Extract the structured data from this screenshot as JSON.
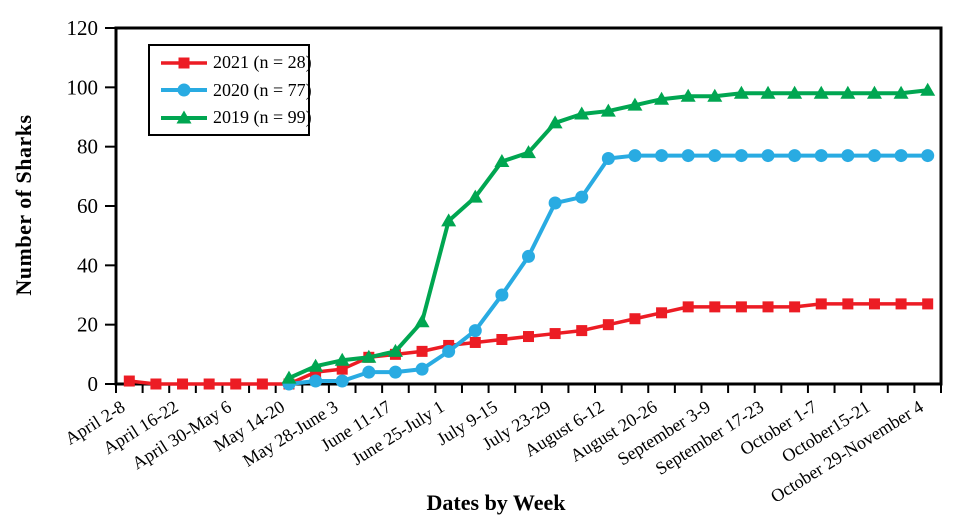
{
  "chart_data": {
    "type": "line",
    "title": "",
    "xlabel": "Dates by Week",
    "ylabel": "Number of Sharks",
    "ylim": [
      0,
      120
    ],
    "yticks": [
      0,
      20,
      40,
      60,
      80,
      100,
      120
    ],
    "grid": false,
    "legend_position": "top-left inside plot area",
    "x_tick_label_rotation_deg": -32,
    "points_per_label": 2,
    "x_labels": [
      "April 2-8",
      "April 16-22",
      "April 30-May 6",
      "May 14-20",
      "May 28-June 3",
      "June 11-17",
      "June 25-July 1",
      "July 9-15",
      "July 23-29",
      "August 6-12",
      "August 20-26",
      "September 3-9",
      "September 17-23",
      "October 1-7",
      "October15-21",
      "October 29-November 4"
    ],
    "series": [
      {
        "name": "2021",
        "legend_label": "2021 (n = 28)",
        "color": "#EC1C24",
        "marker": "square",
        "line_width": 3.5,
        "values": [
          1,
          0,
          0,
          0,
          0,
          0,
          0,
          4,
          5,
          9,
          10,
          11,
          13,
          14,
          15,
          16,
          17,
          18,
          20,
          22,
          24,
          26,
          26,
          26,
          26,
          26,
          27,
          27,
          27,
          27,
          27
        ]
      },
      {
        "name": "2020",
        "legend_label": "2020 (n = 77)",
        "color": "#29ABE2",
        "marker": "circle",
        "line_width": 4,
        "values": [
          null,
          null,
          null,
          null,
          null,
          null,
          0,
          1,
          1,
          4,
          4,
          5,
          11,
          18,
          30,
          43,
          61,
          63,
          76,
          77,
          77,
          77,
          77,
          77,
          77,
          77,
          77,
          77,
          77,
          77,
          77
        ]
      },
      {
        "name": "2019",
        "legend_label": "2019 (n = 99)",
        "color": "#00A651",
        "marker": "triangle",
        "line_width": 4,
        "values": [
          null,
          null,
          null,
          null,
          null,
          null,
          2,
          6,
          8,
          9,
          11,
          21,
          55,
          63,
          75,
          78,
          88,
          91,
          92,
          94,
          96,
          97,
          97,
          98,
          98,
          98,
          98,
          98,
          98,
          98,
          99
        ]
      }
    ]
  }
}
